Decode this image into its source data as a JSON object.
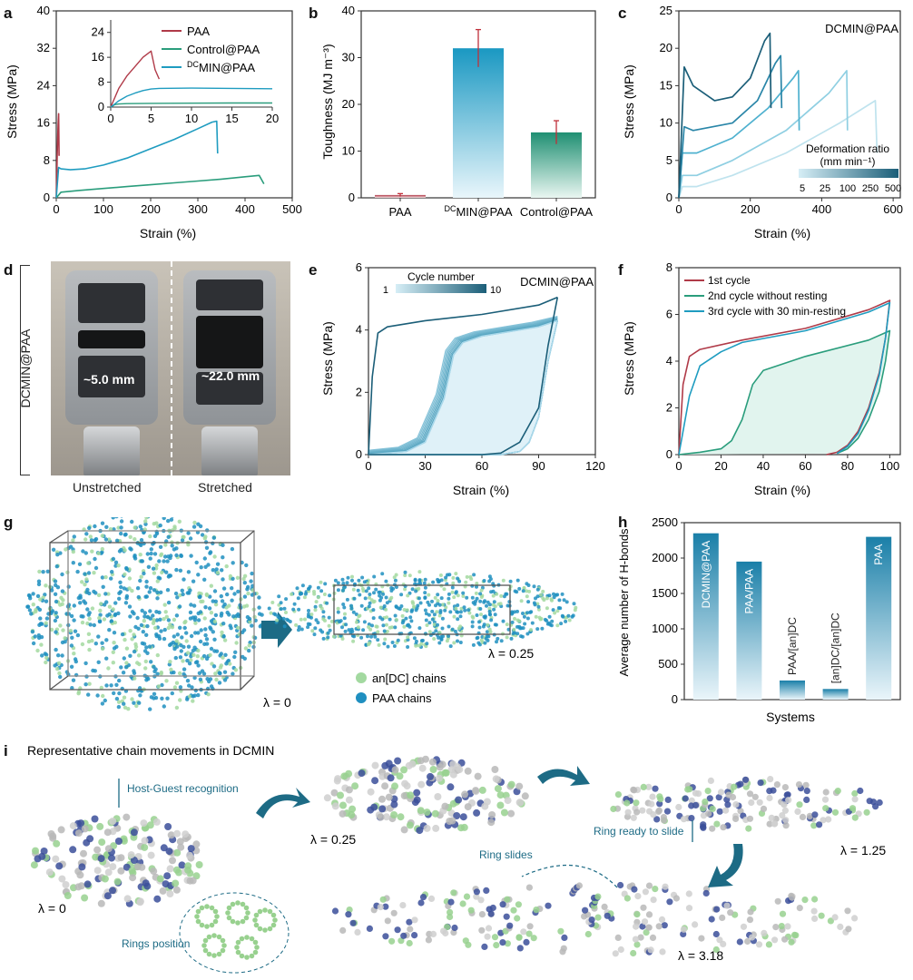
{
  "panels": {
    "a": {
      "label": "a",
      "chart_data": {
        "type": "line",
        "xlabel": "Strain (%)",
        "ylabel": "Stress (MPa)",
        "xlim": [
          0,
          500
        ],
        "ylim": [
          0,
          40
        ],
        "xticks": [
          "0",
          "100",
          "200",
          "300",
          "400",
          "500"
        ],
        "yticks": [
          "0",
          "8",
          "16",
          "24",
          "32",
          "40"
        ],
        "series": [
          {
            "name": "PAA",
            "color": "#b03a48",
            "x": [
              0,
              1,
              2,
              3,
              4,
              5,
              6
            ],
            "y": [
              0,
              4,
              9,
              13,
              16,
              18,
              9
            ]
          },
          {
            "name": "Control@PAA",
            "color": "#2a9d7c",
            "x": [
              0,
              10,
              50,
              100,
              150,
              200,
              250,
              300,
              350,
              400,
              430,
              440
            ],
            "y": [
              0,
              1.2,
              1.6,
              2.0,
              2.4,
              2.8,
              3.2,
              3.6,
              4.0,
              4.5,
              4.8,
              3.0
            ]
          },
          {
            "name": "DCMIN@PAA",
            "color": "#1f9cc0",
            "x": [
              0,
              5,
              10,
              30,
              60,
              100,
              150,
              200,
              250,
              300,
              330,
              340,
              342
            ],
            "y": [
              0,
              6.5,
              6.2,
              6.0,
              6.2,
              7.0,
              8.5,
              10.5,
              12.5,
              14.8,
              16.2,
              16.4,
              9.5
            ]
          }
        ],
        "inset": {
          "xlim": [
            0,
            20
          ],
          "ylim": [
            0,
            28
          ],
          "xticks": [
            "0",
            "5",
            "10",
            "15",
            "20"
          ],
          "yticks": [
            "0",
            "8",
            "16",
            "24"
          ]
        }
      }
    },
    "b": {
      "label": "b",
      "chart_data": {
        "type": "bar",
        "ylabel": "Toughness (MJ m⁻³)",
        "ylim": [
          0,
          40
        ],
        "yticks": [
          "0",
          "10",
          "20",
          "30",
          "40"
        ],
        "categories": [
          "PAA",
          "DCMIN@PAA",
          "Control@PAA"
        ],
        "values": [
          0.6,
          32,
          14
        ],
        "errors": [
          0.3,
          4,
          2.5
        ],
        "colors": [
          "#b03a48",
          "#1f9cc0",
          "#2a9d7c"
        ]
      }
    },
    "c": {
      "label": "c",
      "annotation": "DCMIN@PAA",
      "legend_title": "Deformation ratio",
      "legend_unit": "(mm min⁻¹)",
      "legend_ticks": [
        "5",
        "25",
        "100",
        "250",
        "500"
      ],
      "chart_data": {
        "type": "line",
        "xlabel": "Strain (%)",
        "ylabel": "Stress (MPa)",
        "xlim": [
          0,
          620
        ],
        "ylim": [
          0,
          25
        ],
        "xticks": [
          "0",
          "200",
          "400",
          "600"
        ],
        "yticks": [
          "0",
          "5",
          "10",
          "15",
          "20",
          "25"
        ],
        "series": [
          {
            "rate": "5",
            "color": "#bfe3ee",
            "x": [
              0,
              10,
              50,
              150,
              300,
              450,
              550,
              555
            ],
            "y": [
              0,
              1.5,
              1.5,
              3,
              6,
              10,
              13,
              6
            ]
          },
          {
            "rate": "25",
            "color": "#8fcfe2",
            "x": [
              0,
              10,
              50,
              150,
              300,
              420,
              470,
              472
            ],
            "y": [
              0,
              3,
              3,
              5,
              9,
              14,
              17,
              9
            ]
          },
          {
            "rate": "100",
            "color": "#4fb1cf",
            "x": [
              0,
              10,
              50,
              150,
              250,
              320,
              335,
              337
            ],
            "y": [
              0,
              6,
              6,
              8,
              12,
              16,
              17,
              9
            ]
          },
          {
            "rate": "250",
            "color": "#2a86a8",
            "x": [
              0,
              15,
              40,
              150,
              220,
              270,
              285,
              288
            ],
            "y": [
              0,
              9.5,
              9,
              10,
              13,
              18,
              19,
              12
            ]
          },
          {
            "rate": "500",
            "color": "#1b5e78",
            "x": [
              0,
              15,
              40,
              100,
              150,
              200,
              240,
              255,
              258
            ],
            "y": [
              0,
              17.5,
              15,
              13,
              13.5,
              16,
              21,
              22,
              12
            ]
          }
        ]
      }
    },
    "d": {
      "label": "d",
      "side_label": "DCMIN@PAA",
      "left_caption": "Unstretched",
      "right_caption": "Stretched",
      "left_gap": "~5.0 mm",
      "right_gap": "~22.0 mm"
    },
    "e": {
      "label": "e",
      "annotation": "DCMIN@PAA",
      "legend_title": "Cycle number",
      "legend_min": "1",
      "legend_max": "10",
      "chart_data": {
        "type": "line",
        "xlabel": "Strain (%)",
        "ylabel": "Stress (MPa)",
        "xlim": [
          0,
          120
        ],
        "ylim": [
          0,
          6
        ],
        "xticks": [
          "0",
          "30",
          "60",
          "90",
          "120"
        ],
        "yticks": [
          "0",
          "2",
          "4",
          "6"
        ],
        "series": [
          {
            "name": "cycle 1",
            "loading": {
              "x": [
                0,
                2,
                5,
                10,
                30,
                60,
                90,
                100
              ],
              "y": [
                0,
                2.5,
                3.9,
                4.1,
                4.3,
                4.5,
                4.8,
                5.05
              ]
            },
            "unloading": {
              "x": [
                100,
                95,
                90,
                80,
                70,
                60,
                0
              ],
              "y": [
                5.05,
                3.5,
                1.5,
                0.4,
                0.05,
                0,
                0
              ]
            }
          },
          {
            "name": "cycle 10",
            "loading": {
              "x": [
                0,
                20,
                30,
                40,
                45,
                50,
                60,
                90,
                100
              ],
              "y": [
                0,
                0.1,
                0.4,
                1.8,
                3.2,
                3.6,
                3.8,
                4.1,
                4.3
              ]
            },
            "unloading": {
              "x": [
                100,
                95,
                90,
                85,
                80,
                70,
                0
              ],
              "y": [
                4.3,
                3.0,
                1.2,
                0.4,
                0.1,
                0,
                0
              ]
            }
          }
        ]
      }
    },
    "f": {
      "label": "f",
      "chart_data": {
        "type": "line",
        "xlabel": "Strain (%)",
        "ylabel": "Stress (MPa)",
        "xlim": [
          0,
          105
        ],
        "ylim": [
          0,
          8
        ],
        "xticks": [
          "0",
          "20",
          "40",
          "60",
          "80",
          "100"
        ],
        "yticks": [
          "0",
          "2",
          "4",
          "6",
          "8"
        ],
        "series": [
          {
            "name": "1st cycle",
            "color": "#b03a48",
            "x": [
              0,
              2,
              5,
              10,
              30,
              60,
              90,
              100,
              98,
              95,
              90,
              85,
              80,
              75,
              70
            ],
            "y": [
              0,
              3,
              4.2,
              4.5,
              4.9,
              5.4,
              6.2,
              6.6,
              5.0,
              3.5,
              2.0,
              1.0,
              0.4,
              0.1,
              0
            ]
          },
          {
            "name": "2nd cycle without resting",
            "color": "#2a9d7c",
            "x": [
              0,
              10,
              20,
              25,
              30,
              35,
              40,
              60,
              90,
              100,
              98,
              95,
              90,
              85,
              80,
              75
            ],
            "y": [
              0,
              0.1,
              0.25,
              0.6,
              1.5,
              3.0,
              3.6,
              4.2,
              4.9,
              5.3,
              4.0,
              2.7,
              1.5,
              0.7,
              0.25,
              0.05
            ]
          },
          {
            "name": "3rd cycle with 30 min-resting",
            "color": "#1f9cc0",
            "x": [
              0,
              5,
              10,
              20,
              30,
              60,
              90,
              100,
              98,
              95,
              90,
              85,
              80,
              75
            ],
            "y": [
              0,
              2.5,
              3.8,
              4.4,
              4.8,
              5.3,
              6.1,
              6.5,
              5.0,
              3.4,
              1.9,
              0.9,
              0.35,
              0.05
            ]
          }
        ]
      }
    },
    "g": {
      "label": "g",
      "lambda_left": "λ = 0",
      "lambda_right": "λ = 0.25",
      "legend": [
        "an[DC] chains",
        "PAA chains"
      ],
      "legend_colors": [
        "#a3d9a0",
        "#1f8fc0"
      ]
    },
    "h": {
      "label": "h",
      "chart_data": {
        "type": "bar",
        "xlabel": "Systems",
        "ylabel": "Average number of H-bonds",
        "ylim": [
          0,
          2500
        ],
        "yticks": [
          "0",
          "500",
          "1000",
          "1500",
          "2000",
          "2500"
        ],
        "categories": [
          "DCMIN@PAA",
          "PAA/PAA",
          "PAA/[an]DC",
          "[an]DC/[an]DC",
          "PAA"
        ],
        "values": [
          2350,
          1950,
          270,
          150,
          2300
        ]
      }
    },
    "i": {
      "label": "i",
      "title": "Representative chain movements in DCMIN",
      "host_guest": "Host-Guest recognition",
      "rings_position": "Rings position",
      "ring_ready": "Ring ready to slide",
      "ring_slides": "Ring slides",
      "lambdas": [
        "λ = 0",
        "λ = 0.25",
        "λ = 1.25",
        "λ = 3.18"
      ]
    }
  }
}
